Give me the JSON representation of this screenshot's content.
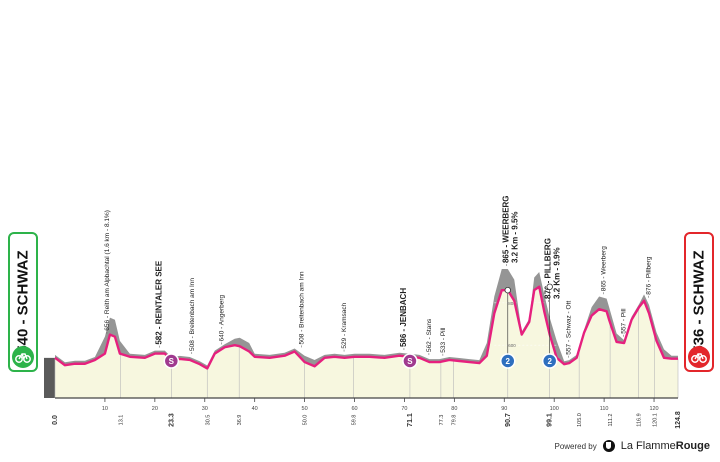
{
  "start": {
    "label": "540 - SCHWAZ",
    "color": "#2db34a"
  },
  "finish": {
    "label": "536 - SCHWAZ",
    "color": "#e3262b"
  },
  "footer": {
    "powered_by": "Powered by",
    "brand_light": "La Flamme",
    "brand_bold": "Rouge"
  },
  "chart_data": {
    "type": "area",
    "title": "",
    "xlabel": "",
    "ylabel": "",
    "x_range": [
      0,
      124.8
    ],
    "y_range": [
      350,
      1050
    ],
    "ref_altitudes": [
      800,
      600
    ],
    "colors": {
      "fill": "#f7f7df",
      "gray": "#959595",
      "profile": "#e6207e",
      "axis": "#444444"
    },
    "profile": {
      "x": [
        0,
        2,
        4,
        6,
        8,
        10,
        11,
        12,
        13,
        15,
        18,
        20,
        22,
        23.3,
        25,
        27,
        29,
        30.5,
        32,
        34,
        36,
        37,
        38.9,
        40,
        43,
        46,
        48,
        50,
        52,
        54,
        56,
        58,
        60,
        63,
        66,
        69,
        71,
        73,
        75,
        77,
        79,
        81,
        83,
        85,
        86.5,
        88,
        89.5,
        90.7,
        92,
        93.5,
        95,
        96,
        97,
        98,
        99.1,
        100.5,
        102,
        103,
        104.5,
        106,
        107.5,
        109,
        110.5,
        111,
        112.5,
        114,
        115.5,
        117,
        118,
        119,
        120.5,
        122,
        123.5,
        124.8
      ],
      "y": [
        540,
        505,
        512,
        512,
        530,
        560,
        650,
        640,
        560,
        545,
        540,
        560,
        560,
        530,
        535,
        530,
        510,
        490,
        560,
        590,
        600,
        595,
        570,
        545,
        540,
        550,
        570,
        520,
        500,
        540,
        545,
        540,
        545,
        545,
        540,
        550,
        545,
        540,
        520,
        520,
        530,
        525,
        520,
        515,
        550,
        750,
        860,
        860,
        810,
        650,
        710,
        860,
        876,
        760,
        650,
        540,
        510,
        515,
        540,
        660,
        740,
        770,
        760,
        720,
        615,
        610,
        720,
        780,
        810,
        750,
        620,
        540,
        536,
        536
      ]
    },
    "gray_peak_offsets": {
      "x": [
        10,
        11,
        12,
        37,
        38,
        50,
        52,
        88,
        89.5,
        90.7,
        97,
        98,
        99.1,
        109,
        110.5,
        111,
        119,
        120.5
      ],
      "y": [
        60,
        80,
        60,
        30,
        40,
        30,
        30,
        60,
        80,
        100,
        60,
        70,
        80,
        40,
        60,
        40,
        30,
        40
      ]
    },
    "x_ticks": [
      0,
      10,
      20,
      30,
      40,
      50,
      60,
      70,
      80,
      90,
      100,
      110,
      120
    ],
    "km_markers": [
      {
        "km": 0,
        "label": "0.0",
        "bold": true
      },
      {
        "km": 13.1,
        "label": "13.1",
        "bold": false
      },
      {
        "km": 23.3,
        "label": "23.3",
        "bold": true
      },
      {
        "km": 30.5,
        "label": "30.5",
        "bold": false
      },
      {
        "km": 36.9,
        "label": "36.9",
        "bold": false
      },
      {
        "km": 50.0,
        "label": "50.0",
        "bold": false
      },
      {
        "km": 59.8,
        "label": "59.8",
        "bold": false
      },
      {
        "km": 71.1,
        "label": "71.1",
        "bold": true
      },
      {
        "km": 77.3,
        "label": "77.3",
        "bold": false
      },
      {
        "km": 79.8,
        "label": "79.8",
        "bold": false
      },
      {
        "km": 90.7,
        "label": "90.7",
        "bold": true
      },
      {
        "km": 99.1,
        "label": "99.1",
        "bold": true
      },
      {
        "km": 105.0,
        "label": "105.0",
        "bold": false
      },
      {
        "km": 111.2,
        "label": "111.2",
        "bold": false
      },
      {
        "km": 116.9,
        "label": "116.9",
        "bold": false
      },
      {
        "km": 120.1,
        "label": "120.1",
        "bold": false
      },
      {
        "km": 124.8,
        "label": "124.8",
        "bold": true
      }
    ],
    "waypoints": [
      {
        "km": 10.0,
        "alt": 656,
        "label": "656 - Reith am Alpbachtal (1.6 km - 8.1%)",
        "bold": false
      },
      {
        "km": 20.5,
        "alt": 582,
        "label": "582 - REINTALER SEE",
        "bold": true
      },
      {
        "km": 27.0,
        "alt": 508,
        "label": "508 - Breitenbach am Inn",
        "bold": false
      },
      {
        "km": 33.0,
        "alt": 640,
        "label": "640 - Angerberg",
        "bold": false
      },
      {
        "km": 49.0,
        "alt": 508,
        "label": "508 - Breitenbach am Inn",
        "bold": false
      },
      {
        "km": 57.5,
        "alt": 529,
        "label": "529 - Kramsach",
        "bold": false
      },
      {
        "km": 69.5,
        "alt": 586,
        "label": "586 - JENBACH",
        "bold": true
      },
      {
        "km": 74.5,
        "alt": 562,
        "label": "562 - Stans",
        "bold": false
      },
      {
        "km": 77.3,
        "alt": 533,
        "label": "533 - Pill",
        "bold": false
      },
      {
        "km": 90.0,
        "alt": 865,
        "label": "865 - WEERBERG",
        "sub": "3.2 Km - 9.5%",
        "bold": true
      },
      {
        "km": 98.5,
        "alt": 876,
        "label": "876 - PILLBERG",
        "sub": "3.2 Km - 9.9%",
        "bold": true
      },
      {
        "km": 102.5,
        "alt": 557,
        "label": "557 - Schwaz - Ott",
        "bold": false
      },
      {
        "km": 109.5,
        "alt": 865,
        "label": "865 - Weerberg",
        "bold": false
      },
      {
        "km": 113.5,
        "alt": 557,
        "label": "557 - Pill",
        "bold": false
      },
      {
        "km": 118.5,
        "alt": 876,
        "label": "876 - Pillberg",
        "bold": false
      }
    ],
    "sprint_markers": [
      {
        "km": 23.3,
        "alt": 530,
        "text": "S",
        "color": "#a03a8f"
      },
      {
        "km": 71.1,
        "alt": 545,
        "text": "S",
        "color": "#a03a8f"
      }
    ],
    "kom_markers": [
      {
        "km": 90.7,
        "alt": 860,
        "text": "2",
        "color": "#2e6fbf"
      },
      {
        "km": 99.1,
        "alt": 876,
        "text": "2",
        "color": "#2e6fbf"
      }
    ]
  }
}
